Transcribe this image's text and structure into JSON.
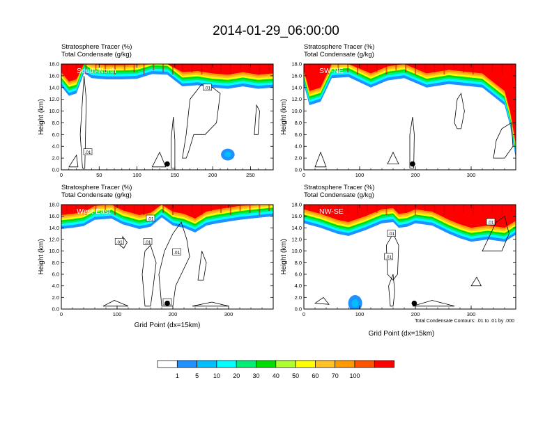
{
  "figure": {
    "title": "2014-01-29_06:00:00",
    "panel_line1": "Stratosphere Tracer   (%)",
    "panel_line2": "Total Condensate   (g/kg)",
    "ylabel": "Height (km)",
    "xlabel": "Grid Point (dx=15km)",
    "contour_note": "Total Condensate Contours: .01 to .01 by .000"
  },
  "colorbar": {
    "colors": [
      "#ffffff",
      "#1e90ff",
      "#00bfff",
      "#00ffff",
      "#00ee76",
      "#00dd00",
      "#adff2f",
      "#ffff00",
      "#ffc125",
      "#ff9900",
      "#ff5500",
      "#ff0000"
    ],
    "labels": [
      "1",
      "5",
      "10",
      "20",
      "30",
      "40",
      "50",
      "60",
      "70",
      "100"
    ]
  },
  "chart_data": [
    {
      "type": "contour-cross-section",
      "panel": "South-North",
      "title": "Stratosphere Tracer (%)",
      "subtitle": "Total Condensate (g/kg)",
      "xlabel": "",
      "ylabel": "Height (km)",
      "xlim": [
        0,
        280
      ],
      "ylim": [
        0,
        18
      ],
      "x_ticks": [
        0,
        50,
        100,
        150,
        200,
        250
      ],
      "y_ticks": [
        0.0,
        2.0,
        4.0,
        6.0,
        8.0,
        10.0,
        12.0,
        14.0,
        16.0,
        18.0
      ],
      "tropopause": [
        [
          0,
          14.2
        ],
        [
          10,
          12.6
        ],
        [
          20,
          13.0
        ],
        [
          30,
          16.5
        ],
        [
          40,
          15.6
        ],
        [
          60,
          15.4
        ],
        [
          80,
          15.4
        ],
        [
          100,
          15.5
        ],
        [
          120,
          16.3
        ],
        [
          140,
          16.2
        ],
        [
          160,
          14.2
        ],
        [
          180,
          14.4
        ],
        [
          200,
          14.0
        ],
        [
          220,
          13.8
        ],
        [
          240,
          14.2
        ],
        [
          260,
          13.8
        ],
        [
          280,
          14.0
        ]
      ],
      "tracer_extra": [
        {
          "x": 220,
          "y": 2.6,
          "w": 18,
          "h": 2.0
        }
      ],
      "condensate_contours": [
        [
          [
            28,
            0.3
          ],
          [
            25,
            6
          ],
          [
            28,
            12
          ],
          [
            30,
            16
          ],
          [
            33,
            12
          ],
          [
            32,
            6
          ],
          [
            31,
            0.3
          ]
        ],
        [
          [
            145,
            0.3
          ],
          [
            145,
            5
          ],
          [
            148,
            9
          ],
          [
            150,
            5
          ],
          [
            150,
            0.3
          ]
        ],
        [
          [
            160,
            2
          ],
          [
            165,
            6
          ],
          [
            170,
            12
          ],
          [
            185,
            14.5
          ],
          [
            200,
            14
          ],
          [
            210,
            13
          ],
          [
            205,
            8
          ],
          [
            190,
            6
          ],
          [
            175,
            6
          ],
          [
            168,
            3
          ],
          [
            165,
            2
          ]
        ],
        [
          [
            255,
            6
          ],
          [
            258,
            11
          ],
          [
            262,
            10
          ],
          [
            260,
            6
          ]
        ],
        [
          [
            120,
            0.5
          ],
          [
            130,
            3
          ],
          [
            138,
            0.5
          ]
        ],
        [
          [
            10,
            0.5
          ],
          [
            20,
            2.5
          ],
          [
            22,
            0.5
          ]
        ]
      ],
      "contour_labels": [
        {
          "x": 35,
          "y": 3.0,
          "text": ".01"
        },
        {
          "x": 193,
          "y": 14.0,
          "text": ".01"
        }
      ],
      "point": {
        "x": 140,
        "y": 1.0
      }
    },
    {
      "type": "contour-cross-section",
      "panel": "SW-NE",
      "title": "Stratosphere Tracer (%)",
      "subtitle": "Total Condensate (g/kg)",
      "xlabel": "",
      "ylabel": "Height (km)",
      "xlim": [
        0,
        380
      ],
      "ylim": [
        0,
        18
      ],
      "x_ticks": [
        0,
        100,
        200,
        300
      ],
      "y_ticks": [
        0.0,
        2.0,
        4.0,
        6.0,
        8.0,
        10.0,
        12.0,
        14.0,
        16.0,
        18.0
      ],
      "tropopause": [
        [
          0,
          14.5
        ],
        [
          10,
          11.0
        ],
        [
          30,
          11.6
        ],
        [
          50,
          15.6
        ],
        [
          80,
          15.8
        ],
        [
          120,
          14.0
        ],
        [
          150,
          15.2
        ],
        [
          180,
          15.6
        ],
        [
          200,
          14.8
        ],
        [
          220,
          14.0
        ],
        [
          260,
          14.6
        ],
        [
          290,
          14.3
        ],
        [
          320,
          14.0
        ],
        [
          340,
          12.5
        ],
        [
          360,
          11.0
        ],
        [
          370,
          7.5
        ],
        [
          380,
          2.0
        ]
      ],
      "tracer_extra": [],
      "condensate_contours": [
        [
          [
            190,
            0.3
          ],
          [
            190,
            6
          ],
          [
            195,
            9
          ],
          [
            198,
            6
          ],
          [
            197,
            0.3
          ]
        ],
        [
          [
            270,
            8
          ],
          [
            275,
            12
          ],
          [
            282,
            13
          ],
          [
            288,
            10
          ],
          [
            282,
            7
          ],
          [
            275,
            7
          ]
        ],
        [
          [
            340,
            2
          ],
          [
            345,
            5
          ],
          [
            355,
            7
          ],
          [
            372,
            8
          ],
          [
            375,
            4
          ],
          [
            360,
            2
          ]
        ],
        [
          [
            150,
            1
          ],
          [
            160,
            3
          ],
          [
            170,
            1
          ]
        ],
        [
          [
            20,
            0.5
          ],
          [
            30,
            3
          ],
          [
            40,
            0.5
          ]
        ]
      ],
      "contour_labels": [],
      "point": {
        "x": 195,
        "y": 1.0
      }
    },
    {
      "type": "contour-cross-section",
      "panel": "West-East",
      "title": "Stratosphere Tracer (%)",
      "subtitle": "Total Condensate (g/kg)",
      "xlabel": "Grid Point (dx=15km)",
      "ylabel": "Height (km)",
      "xlim": [
        0,
        380
      ],
      "ylim": [
        0,
        18
      ],
      "x_ticks": [
        0,
        100,
        200,
        300
      ],
      "y_ticks": [
        0.0,
        2.0,
        4.0,
        6.0,
        8.0,
        10.0,
        12.0,
        14.0,
        16.0,
        18.0
      ],
      "tropopause": [
        [
          0,
          13.8
        ],
        [
          20,
          14.0
        ],
        [
          40,
          14.3
        ],
        [
          60,
          15.4
        ],
        [
          90,
          15.6
        ],
        [
          110,
          14.6
        ],
        [
          140,
          13.8
        ],
        [
          160,
          14.2
        ],
        [
          180,
          15.8
        ],
        [
          200,
          14.4
        ],
        [
          220,
          14.0
        ],
        [
          240,
          13.2
        ],
        [
          260,
          14.4
        ],
        [
          280,
          14.8
        ],
        [
          320,
          15.4
        ],
        [
          360,
          15.8
        ],
        [
          380,
          16.0
        ]
      ],
      "tracer_extra": [],
      "condensate_contours": [
        [
          [
            150,
            0.5
          ],
          [
            145,
            6
          ],
          [
            150,
            10
          ],
          [
            160,
            11
          ],
          [
            170,
            8
          ],
          [
            165,
            4
          ],
          [
            160,
            0.5
          ]
        ],
        [
          [
            180,
            0.5
          ],
          [
            175,
            6
          ],
          [
            185,
            10
          ],
          [
            200,
            13
          ],
          [
            215,
            15
          ],
          [
            225,
            12
          ],
          [
            230,
            9
          ],
          [
            215,
            6
          ],
          [
            205,
            4
          ],
          [
            200,
            0.5
          ]
        ],
        [
          [
            105,
            11
          ],
          [
            110,
            12.5
          ],
          [
            118,
            11.5
          ],
          [
            112,
            10.5
          ]
        ],
        [
          [
            245,
            5
          ],
          [
            252,
            10
          ],
          [
            260,
            8
          ],
          [
            255,
            5
          ]
        ],
        [
          [
            75,
            0.5
          ],
          [
            95,
            1.5
          ],
          [
            120,
            0.5
          ]
        ],
        [
          [
            235,
            0.5
          ],
          [
            270,
            1.2
          ],
          [
            300,
            0.5
          ]
        ]
      ],
      "contour_labels": [
        {
          "x": 104,
          "y": 11.6,
          "text": ".01"
        },
        {
          "x": 155,
          "y": 11.6,
          "text": ".01"
        },
        {
          "x": 160,
          "y": 15.6,
          "text": ".01"
        },
        {
          "x": 207,
          "y": 9.8,
          "text": ".01"
        },
        {
          "x": 190,
          "y": 1.2,
          "text": ".01"
        }
      ],
      "point": {
        "x": 190,
        "y": 1.0
      }
    },
    {
      "type": "contour-cross-section",
      "panel": "NW-SE",
      "title": "Stratosphere Tracer (%)",
      "subtitle": "Total Condensate (g/kg)",
      "xlabel": "Grid Point (dx=15km)",
      "ylabel": "Height (km)",
      "xlim": [
        0,
        380
      ],
      "ylim": [
        0,
        18
      ],
      "x_ticks": [
        0,
        100,
        200,
        300
      ],
      "y_ticks": [
        0.0,
        2.0,
        4.0,
        6.0,
        8.0,
        10.0,
        12.0,
        14.0,
        16.0,
        18.0
      ],
      "tropopause": [
        [
          0,
          14.8
        ],
        [
          30,
          14.0
        ],
        [
          60,
          13.0
        ],
        [
          80,
          12.6
        ],
        [
          110,
          13.6
        ],
        [
          140,
          14.8
        ],
        [
          160,
          15.0
        ],
        [
          170,
          14.0
        ],
        [
          185,
          14.2
        ],
        [
          200,
          14.8
        ],
        [
          230,
          14.4
        ],
        [
          260,
          13.0
        ],
        [
          280,
          12.2
        ],
        [
          300,
          11.6
        ],
        [
          330,
          12.0
        ],
        [
          360,
          11.6
        ],
        [
          380,
          12.8
        ]
      ],
      "tracer_extra": [
        {
          "x": 92,
          "y": 1.0,
          "w": 25,
          "h": 2.8
        }
      ],
      "condensate_contours": [
        [
          [
            150,
            6
          ],
          [
            148,
            11
          ],
          [
            160,
            13
          ],
          [
            170,
            11
          ],
          [
            168,
            6
          ],
          [
            160,
            5
          ]
        ],
        [
          [
            155,
            0.5
          ],
          [
            152,
            4
          ],
          [
            160,
            6
          ],
          [
            163,
            3
          ],
          [
            160,
            0.5
          ]
        ],
        [
          [
            320,
            10
          ],
          [
            345,
            15
          ],
          [
            360,
            16
          ],
          [
            368,
            13
          ],
          [
            355,
            10
          ]
        ],
        [
          [
            300,
            4
          ],
          [
            310,
            5.5
          ],
          [
            318,
            4
          ]
        ],
        [
          [
            195,
            0.5
          ],
          [
            230,
            1.5
          ],
          [
            270,
            0.5
          ]
        ],
        [
          [
            20,
            1
          ],
          [
            35,
            2
          ],
          [
            45,
            0.8
          ]
        ]
      ],
      "contour_labels": [
        {
          "x": 157,
          "y": 13.0,
          "text": ".01"
        },
        {
          "x": 152,
          "y": 9.0,
          "text": ".01"
        },
        {
          "x": 335,
          "y": 15.0,
          "text": ".01"
        }
      ],
      "point": {
        "x": 198,
        "y": 1.0
      }
    }
  ]
}
